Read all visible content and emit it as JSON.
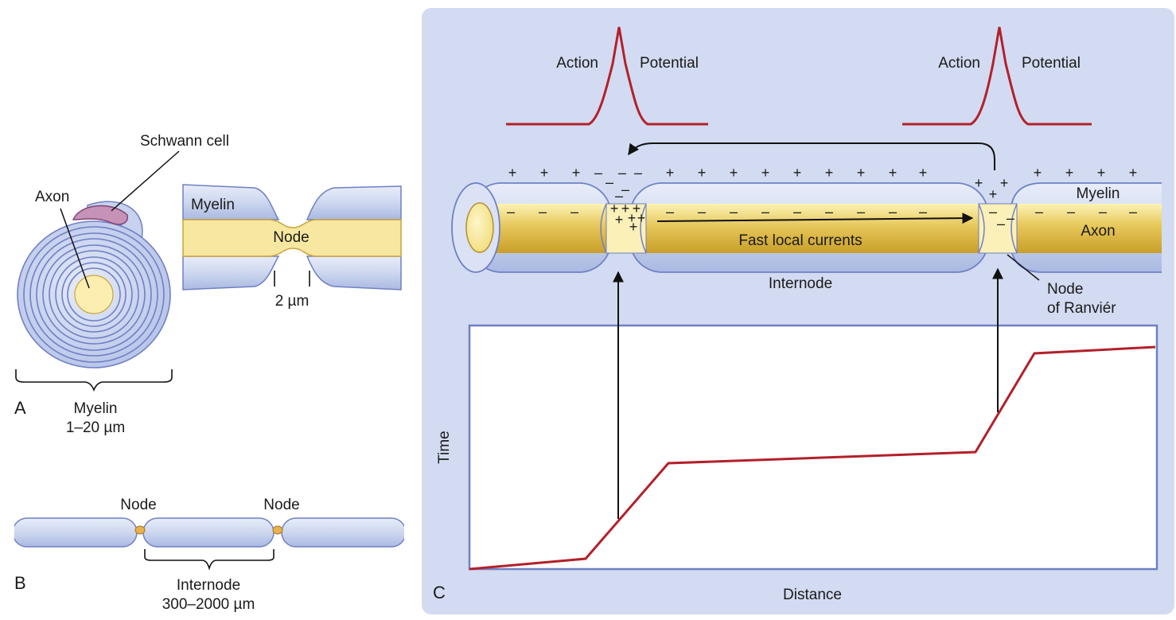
{
  "panel_a": {
    "letter": "A",
    "schwann_label": "Schwann cell",
    "axon_label": "Axon",
    "myelin_label": "Myelin",
    "node_label": "Node",
    "node_width": "2 µm",
    "myelin_thickness_label": "Myelin",
    "myelin_thickness_value": "1–20 µm"
  },
  "panel_b": {
    "letter": "B",
    "node_label_1": "Node",
    "node_label_2": "Node",
    "internode_label": "Internode",
    "internode_length": "300–2000 µm"
  },
  "panel_c": {
    "letter": "C",
    "ap_left_word1": "Action",
    "ap_left_word2": "Potential",
    "ap_right_word1": "Action",
    "ap_right_word2": "Potential",
    "myelin_label": "Myelin",
    "axon_label": "Axon",
    "current_label": "Fast local currents",
    "internode_label": "Internode",
    "node_label_line1": "Node",
    "node_label_line2": "of Ranviér",
    "plus": "+",
    "minus": "–",
    "y_axis_label": "Time",
    "x_axis_label": "Distance"
  },
  "colors": {
    "myelin_fill": "#cdd7ef",
    "myelin_stroke": "#6f80c4",
    "axon_fill": "#e6c75a",
    "axon_light": "#fbf0b8",
    "panel_bg": "#d2dbf1",
    "red_trace": "#b3202a"
  }
}
